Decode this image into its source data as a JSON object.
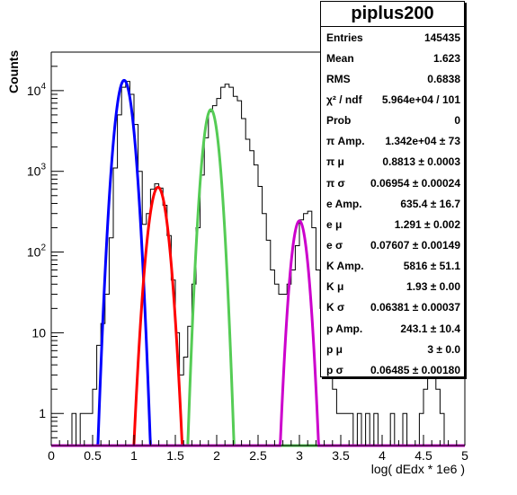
{
  "chart_data": {
    "type": "histogram",
    "xlabel": "log( dEdx * 1e6 )",
    "ylabel": "Counts",
    "xlim": [
      0,
      5
    ],
    "ylim": [
      0.4,
      30000
    ],
    "yscale": "log",
    "grid": false,
    "x_ticks": [
      "0",
      "0.5",
      "1",
      "1.5",
      "2",
      "2.5",
      "3",
      "3.5",
      "4",
      "4.5",
      "5"
    ],
    "x_tick_values": [
      0,
      0.5,
      1,
      1.5,
      2,
      2.5,
      3,
      3.5,
      4,
      4.5,
      5
    ],
    "y_ticks": [
      {
        "value": 1,
        "base": "1",
        "exp": ""
      },
      {
        "value": 10,
        "base": "10",
        "exp": ""
      },
      {
        "value": 100,
        "base": "10",
        "exp": "2"
      },
      {
        "value": 1000,
        "base": "10",
        "exp": "3"
      },
      {
        "value": 10000,
        "base": "10",
        "exp": "4"
      }
    ],
    "histogram": {
      "color": "#000000",
      "points": [
        [
          0.0,
          0
        ],
        [
          0.05,
          0
        ],
        [
          0.1,
          0
        ],
        [
          0.15,
          0
        ],
        [
          0.2,
          0
        ],
        [
          0.25,
          1
        ],
        [
          0.3,
          0
        ],
        [
          0.35,
          1
        ],
        [
          0.4,
          1
        ],
        [
          0.45,
          1
        ],
        [
          0.5,
          2
        ],
        [
          0.55,
          7
        ],
        [
          0.6,
          13
        ],
        [
          0.65,
          30
        ],
        [
          0.7,
          150
        ],
        [
          0.75,
          1100
        ],
        [
          0.8,
          5000
        ],
        [
          0.85,
          11000
        ],
        [
          0.9,
          13000
        ],
        [
          0.95,
          9000
        ],
        [
          1.0,
          3800
        ],
        [
          1.05,
          1000
        ],
        [
          1.1,
          220
        ],
        [
          1.15,
          300
        ],
        [
          1.2,
          600
        ],
        [
          1.25,
          700
        ],
        [
          1.3,
          620
        ],
        [
          1.35,
          380
        ],
        [
          1.4,
          160
        ],
        [
          1.45,
          45
        ],
        [
          1.5,
          10
        ],
        [
          1.55,
          3
        ],
        [
          1.6,
          5
        ],
        [
          1.65,
          12
        ],
        [
          1.7,
          40
        ],
        [
          1.75,
          200
        ],
        [
          1.8,
          900
        ],
        [
          1.85,
          2600
        ],
        [
          1.9,
          5500
        ],
        [
          1.95,
          6500
        ],
        [
          2.0,
          8000
        ],
        [
          2.05,
          11000
        ],
        [
          2.1,
          12000
        ],
        [
          2.15,
          11000
        ],
        [
          2.2,
          8500
        ],
        [
          2.25,
          7500
        ],
        [
          2.3,
          4500
        ],
        [
          2.35,
          2500
        ],
        [
          2.4,
          1800
        ],
        [
          2.45,
          1200
        ],
        [
          2.5,
          650
        ],
        [
          2.55,
          300
        ],
        [
          2.6,
          140
        ],
        [
          2.65,
          60
        ],
        [
          2.7,
          40
        ],
        [
          2.75,
          30
        ],
        [
          2.8,
          30
        ],
        [
          2.85,
          40
        ],
        [
          2.9,
          60
        ],
        [
          2.95,
          120
        ],
        [
          3.0,
          250
        ],
        [
          3.05,
          300
        ],
        [
          3.1,
          320
        ],
        [
          3.15,
          200
        ],
        [
          3.2,
          60
        ],
        [
          3.25,
          20
        ],
        [
          3.3,
          8
        ],
        [
          3.35,
          4
        ],
        [
          3.4,
          2
        ],
        [
          3.45,
          1
        ],
        [
          3.5,
          1
        ],
        [
          3.55,
          1
        ],
        [
          3.6,
          1
        ],
        [
          3.65,
          0
        ],
        [
          3.7,
          1
        ],
        [
          3.75,
          0
        ],
        [
          3.8,
          1
        ],
        [
          3.85,
          0
        ],
        [
          3.9,
          1
        ],
        [
          3.95,
          0
        ],
        [
          4.0,
          0
        ],
        [
          4.05,
          0
        ],
        [
          4.1,
          1
        ],
        [
          4.15,
          0
        ],
        [
          4.2,
          0
        ],
        [
          4.25,
          1
        ],
        [
          4.3,
          0
        ],
        [
          4.35,
          0
        ],
        [
          4.4,
          0
        ],
        [
          4.45,
          1
        ],
        [
          4.5,
          2
        ],
        [
          4.55,
          3
        ],
        [
          4.6,
          3
        ],
        [
          4.65,
          2
        ],
        [
          4.7,
          1
        ],
        [
          4.75,
          0
        ],
        [
          4.8,
          0
        ],
        [
          4.85,
          0
        ],
        [
          4.9,
          0
        ],
        [
          4.95,
          0
        ]
      ]
    },
    "fits": [
      {
        "name": "pi",
        "color": "#0000ff",
        "amp": 13420,
        "mu": 0.8813,
        "sigma": 0.06954
      },
      {
        "name": "e",
        "color": "#ff0000",
        "amp": 635.4,
        "mu": 1.291,
        "sigma": 0.07607
      },
      {
        "name": "K",
        "color": "#55cc55",
        "amp": 5816,
        "mu": 1.93,
        "sigma": 0.06381
      },
      {
        "name": "p",
        "color": "#cc00cc",
        "amp": 243.1,
        "mu": 3.0,
        "sigma": 0.06485
      }
    ]
  },
  "stats": {
    "title": "piplus200",
    "rows": [
      {
        "label": "Entries",
        "value": "145435"
      },
      {
        "label": "Mean",
        "value": "1.623"
      },
      {
        "label": "RMS",
        "value": "0.6838"
      },
      {
        "label": "χ² / ndf",
        "value": "5.964e+04 / 101"
      },
      {
        "label": "Prob",
        "value": "0"
      },
      {
        "label": "π Amp.",
        "value": "1.342e+04 ± 73"
      },
      {
        "label": "π μ",
        "value": "0.8813 ± 0.0003"
      },
      {
        "label": "π σ",
        "value": "0.06954 ± 0.00024"
      },
      {
        "label": "e Amp.",
        "value": "635.4 ± 16.7"
      },
      {
        "label": "e μ",
        "value": "1.291 ± 0.002"
      },
      {
        "label": "e σ",
        "value": "0.07607 ± 0.00149"
      },
      {
        "label": "K Amp.",
        "value": "5816 ± 51.1"
      },
      {
        "label": "K μ",
        "value": "1.93 ± 0.00"
      },
      {
        "label": "K σ",
        "value": "0.06381 ± 0.00037"
      },
      {
        "label": "p Amp.",
        "value": "243.1 ± 10.4"
      },
      {
        "label": "p μ",
        "value": "3 ± 0.0"
      },
      {
        "label": "p σ",
        "value": "0.06485 ± 0.00180"
      }
    ]
  }
}
